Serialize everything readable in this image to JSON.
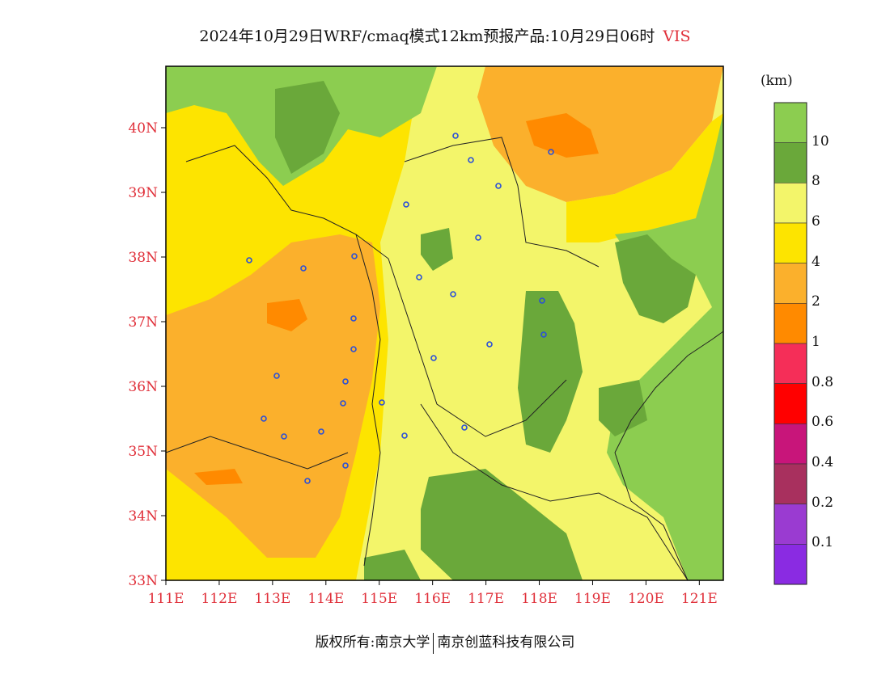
{
  "title": {
    "main": "2024年10月29日WRF/cmaq模式12km预报产品:10月29日06时",
    "variable": "VIS"
  },
  "map": {
    "lat_ticks": [
      "40N",
      "39N",
      "38N",
      "37N",
      "36N",
      "35N",
      "34N",
      "33N"
    ],
    "lon_ticks": [
      "111E",
      "112E",
      "113E",
      "114E",
      "115E",
      "116E",
      "117E",
      "118E",
      "119E",
      "120E",
      "121E"
    ],
    "lat_values": [
      40,
      39,
      38,
      37,
      36,
      35,
      34,
      33
    ],
    "lon_values": [
      111,
      112,
      113,
      114,
      115,
      116,
      117,
      118,
      119,
      120,
      121
    ]
  },
  "colorbar": {
    "unit": "(km)",
    "labels": [
      "10",
      "8",
      "6",
      "4",
      "2",
      "1",
      "0.8",
      "0.6",
      "0.4",
      "0.2",
      "0.1"
    ],
    "colors": [
      "#8ccd50",
      "#6aa83a",
      "#f3f56a",
      "#fde400",
      "#fbb02c",
      "#ff8a00",
      "#f52e58",
      "#ff0000",
      "#c8157a",
      "#a8305e",
      "#9a3bd1",
      "#8a2be2"
    ]
  },
  "legend_colors": {
    "gt10": "#8ccd50",
    "8_10": "#6aa83a",
    "6_8": "#f3f56a",
    "4_6": "#fde400",
    "2_4": "#fbb02c",
    "1_2": "#ff8a00"
  },
  "footer": {
    "left": "版权所有:南京大学",
    "right": "南京创蓝科技有限公司"
  }
}
